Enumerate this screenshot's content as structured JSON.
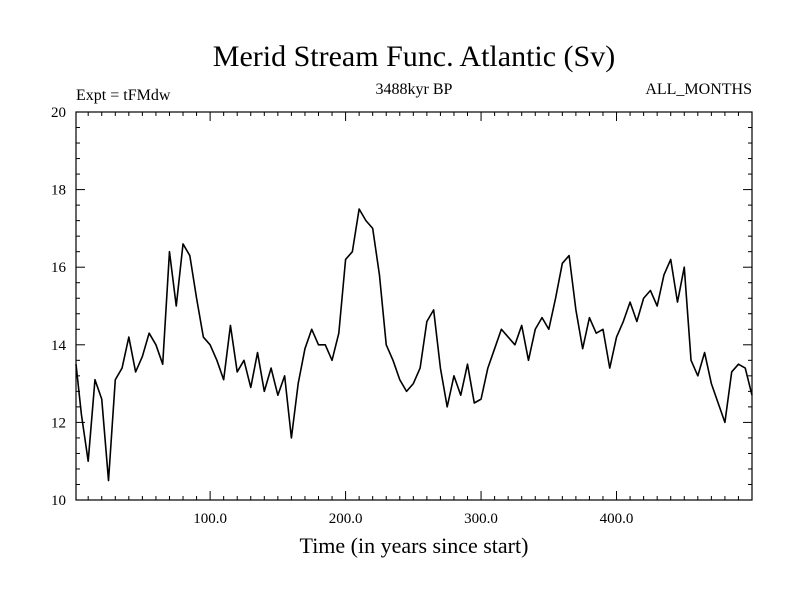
{
  "chart_data": {
    "type": "line",
    "title": "Merid Stream Func. Atlantic (Sv)",
    "subtitle_left": "Expt = tFMdw",
    "subtitle_center": "3488kyr BP",
    "subtitle_right": "ALL_MONTHS",
    "xlabel": "Time (in years since start)",
    "ylabel": "",
    "xlim": [
      1,
      500
    ],
    "ylim": [
      10,
      20
    ],
    "x_ticks": [
      100,
      200,
      300,
      400
    ],
    "x_tick_labels": [
      "100.0",
      "200.0",
      "300.0",
      "400.0"
    ],
    "y_ticks": [
      10,
      12,
      14,
      16,
      18,
      20
    ],
    "y_tick_labels": [
      "10",
      "12",
      "14",
      "16",
      "18",
      "20"
    ],
    "grid": false,
    "series": [
      {
        "name": "Merid Stream Func. Atlantic",
        "color": "#000000",
        "x": [
          1,
          5,
          10,
          15,
          20,
          25,
          30,
          35,
          40,
          45,
          50,
          55,
          60,
          65,
          70,
          75,
          80,
          85,
          90,
          95,
          100,
          105,
          110,
          115,
          120,
          125,
          130,
          135,
          140,
          145,
          150,
          155,
          160,
          165,
          170,
          175,
          180,
          185,
          190,
          195,
          200,
          205,
          210,
          215,
          220,
          225,
          230,
          235,
          240,
          245,
          250,
          255,
          260,
          265,
          270,
          275,
          280,
          285,
          290,
          295,
          300,
          305,
          310,
          315,
          320,
          325,
          330,
          335,
          340,
          345,
          350,
          355,
          360,
          365,
          370,
          375,
          380,
          385,
          390,
          395,
          400,
          405,
          410,
          415,
          420,
          425,
          430,
          435,
          440,
          445,
          450,
          455,
          460,
          465,
          470,
          475,
          480,
          485,
          490,
          495,
          500
        ],
        "values": [
          13.5,
          12.2,
          11.0,
          13.1,
          12.6,
          10.5,
          13.1,
          13.4,
          14.2,
          13.3,
          13.7,
          14.3,
          14.0,
          13.5,
          16.4,
          15.0,
          16.6,
          16.3,
          15.2,
          14.2,
          14.0,
          13.6,
          13.1,
          14.5,
          13.3,
          13.6,
          12.9,
          13.8,
          12.8,
          13.4,
          12.7,
          13.2,
          11.6,
          13.0,
          13.9,
          14.4,
          14.0,
          14.0,
          13.6,
          14.3,
          16.2,
          16.4,
          17.5,
          17.2,
          17.0,
          15.8,
          14.0,
          13.6,
          13.1,
          12.8,
          13.0,
          13.4,
          14.6,
          14.9,
          13.4,
          12.4,
          13.2,
          12.7,
          13.5,
          12.5,
          12.6,
          13.4,
          13.9,
          14.4,
          14.2,
          14.0,
          14.5,
          13.6,
          14.4,
          14.7,
          14.4,
          15.2,
          16.1,
          16.3,
          14.9,
          13.9,
          14.7,
          14.3,
          14.4,
          13.4,
          14.2,
          14.6,
          15.1,
          14.6,
          15.2,
          15.4,
          15.0,
          15.8,
          16.2,
          15.1,
          16.0,
          13.6,
          13.2,
          13.8,
          13.0,
          12.5,
          12.0,
          13.3,
          13.5,
          13.4,
          12.7
        ]
      }
    ]
  }
}
